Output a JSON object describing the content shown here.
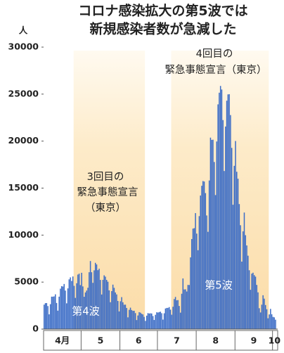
{
  "chart_data": {
    "type": "bar",
    "title": [
      "コロナ感染拡大の第5波では",
      "新規感染者数が急減した"
    ],
    "y_label": "人",
    "color": "#3b6cc6",
    "ylim": [
      0,
      30000
    ],
    "yticks": [
      0,
      5000,
      10000,
      15000,
      20000,
      25000,
      30000
    ],
    "annotations": {
      "emergency_3": [
        "3回目の",
        "緊急事態宣言",
        "（東京）"
      ],
      "emergency_4": [
        "4回目の",
        "緊急事態宣言（東京）"
      ],
      "wave_4": "第4波",
      "wave_5": "第5波"
    },
    "months": [
      {
        "label": "4月",
        "values": [
          2600,
          2760,
          2770,
          2450,
          1570,
          2650,
          3450,
          3450,
          3480,
          3700,
          2780,
          1960,
          3450,
          4300,
          4570,
          4530,
          4800,
          4100,
          2740,
          4330,
          5290,
          5500,
          5120,
          5600,
          4600,
          3320,
          4880,
          5800,
          5900,
          4680
        ]
      },
      {
        "label": "5",
        "values": [
          5990,
          4540,
          3440,
          3900,
          4100,
          4400,
          6050,
          7240,
          6050,
          4920,
          6250,
          7050,
          6880,
          6270,
          6420,
          5230,
          3680,
          5240,
          5720,
          5580,
          5230,
          5040,
          4120,
          2860,
          4040,
          4730,
          4390,
          3900,
          3690,
          2990,
          1880
        ]
      },
      {
        "label": "6",
        "values": [
          2960,
          3400,
          2850,
          2590,
          2600,
          2250,
          1250,
          2050,
          2280,
          2030,
          1940,
          1950,
          1700,
          960,
          1450,
          1800,
          1750,
          1630,
          1560,
          1300,
          870,
          1430,
          1700,
          1660,
          1680,
          1660,
          1390,
          970,
          1520,
          1790
        ]
      },
      {
        "label": "7",
        "values": [
          1760,
          1810,
          1850,
          1690,
          1010,
          1680,
          2190,
          2250,
          2260,
          2340,
          2070,
          1530,
          2380,
          3200,
          3420,
          3060,
          3090,
          2460,
          1750,
          3760,
          5390,
          4220,
          4230,
          4000,
          4700,
          4690,
          7630,
          9580,
          10690,
          10740,
          12340
        ]
      },
      {
        "label": "8",
        "values": [
          10160,
          8390,
          12020,
          14210,
          15250,
          15750,
          15700,
          14470,
          12090,
          10350,
          15810,
          20370,
          20130,
          20150,
          17780,
          14260,
          19960,
          23910,
          25150,
          25870,
          25490,
          22240,
          16820,
          21550,
          24300,
          24970,
          24990,
          22770,
          19280,
          13230,
          17370
        ]
      },
      {
        "label": "9",
        "values": [
          20010,
          16740,
          16000,
          13300,
          11050,
          7180,
          10400,
          12400,
          9990,
          8900,
          7810,
          6260,
          4180,
          5900,
          6000,
          5740,
          5580,
          4700,
          3910,
          2220,
          1770,
          2600,
          3600,
          3240,
          2560,
          2110,
          1150,
          1560,
          2150,
          1580
        ]
      },
      {
        "label": "10",
        "values": [
          1300,
          1250,
          1000
        ]
      }
    ]
  }
}
